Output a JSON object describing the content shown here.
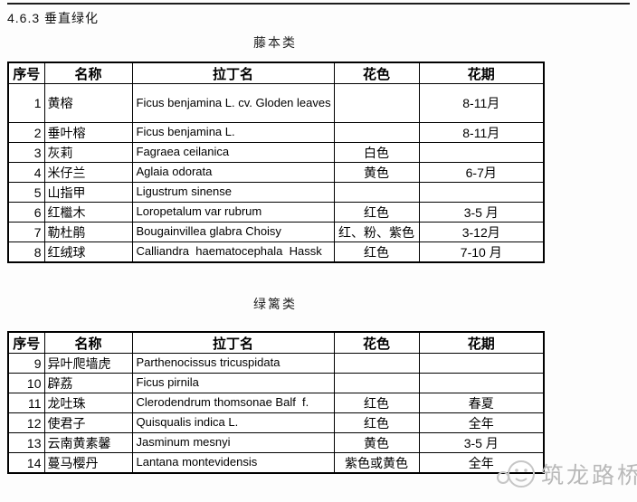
{
  "page": {
    "heading": "4.6.3  垂直绿化",
    "watermark_text": "筑龙路桥",
    "watermark_color": "#b9b9b9",
    "border_color": "#000000"
  },
  "tables": [
    {
      "caption": "藤本类",
      "headers": [
        "序号",
        "名称",
        "拉丁名",
        "花色",
        "花期"
      ],
      "rows": [
        {
          "no": "1",
          "name": "黄榕",
          "latin": "Ficus benjamina L. cv. Gloden leaves",
          "color": "",
          "period": "8-11月",
          "tall": true
        },
        {
          "no": "2",
          "name": "垂叶榕",
          "latin": "Ficus benjamina L.",
          "color": "",
          "period": "8-11月"
        },
        {
          "no": "3",
          "name": "灰莉",
          "latin": "Fagraea ceilanica",
          "color": "白色",
          "period": ""
        },
        {
          "no": "4",
          "name": "米仔兰",
          "latin": "Aglaia odorata",
          "color": "黄色",
          "period": "6-7月"
        },
        {
          "no": "5",
          "name": "山指甲",
          "latin": "Ligustrum sinense",
          "color": "",
          "period": ""
        },
        {
          "no": "6",
          "name": "红檵木",
          "latin": "Loropetalum var rubrum",
          "color": "红色",
          "period": "3-5 月"
        },
        {
          "no": "7",
          "name": "勒杜鹃",
          "latin": "Bougainvillea glabra Choisy",
          "color": "红、粉、紫色",
          "period": "3-12月"
        },
        {
          "no": "8",
          "name": "红绒球",
          "latin": "Calliandra  haematocephala  Hassk",
          "color": "红色",
          "period": "7-10 月"
        }
      ]
    },
    {
      "caption": "绿篱类",
      "headers": [
        "序号",
        "名称",
        "拉丁名",
        "花色",
        "花期"
      ],
      "rows": [
        {
          "no": "9",
          "name": "异叶爬墙虎",
          "latin": "Parthenocissus tricuspidata",
          "color": "",
          "period": ""
        },
        {
          "no": "10",
          "name": "辟荔",
          "latin": "Ficus pirnila",
          "color": "",
          "period": ""
        },
        {
          "no": "11",
          "name": "龙吐珠",
          "latin": "Clerodendrum thomsonae Balf  f.",
          "color": "红色",
          "period": "春夏"
        },
        {
          "no": "12",
          "name": "使君子",
          "latin": "Quisqualis indica L.",
          "color": "红色",
          "period": "全年"
        },
        {
          "no": "13",
          "name": "云南黄素馨",
          "latin": "Jasminum mesnyi",
          "color": "黄色",
          "period": "3-5 月"
        },
        {
          "no": "14",
          "name": "蔓马樱丹",
          "latin": "Lantana montevidensis",
          "color": "紫色或黄色",
          "period": "全年"
        }
      ]
    }
  ]
}
